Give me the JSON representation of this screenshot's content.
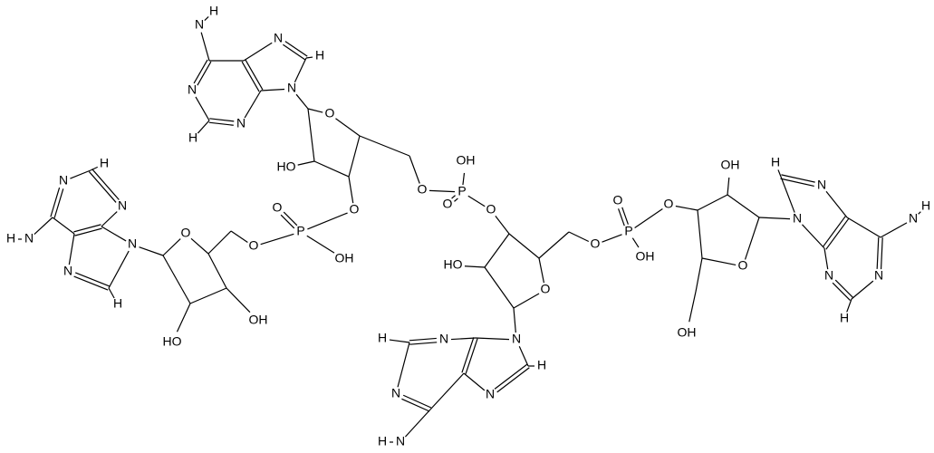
{
  "molecule": {
    "atoms": [
      "N",
      "H",
      "N",
      "H",
      "N",
      "N",
      "H",
      "N",
      "O",
      "HO",
      "O",
      "O",
      "P",
      "O",
      "OH",
      "O",
      "O",
      "HO",
      "OH",
      "N",
      "H",
      "N",
      "N",
      "H",
      "N",
      "N",
      "H",
      "P",
      "O",
      "OH",
      "O",
      "O",
      "HO",
      "O",
      "N",
      "H",
      "N",
      "N",
      "H",
      "N",
      "N",
      "H",
      "P",
      "O",
      "OH",
      "O",
      "OH",
      "O",
      "OH",
      "N",
      "H",
      "N",
      "N",
      "H",
      "N",
      "N",
      "H"
    ]
  }
}
